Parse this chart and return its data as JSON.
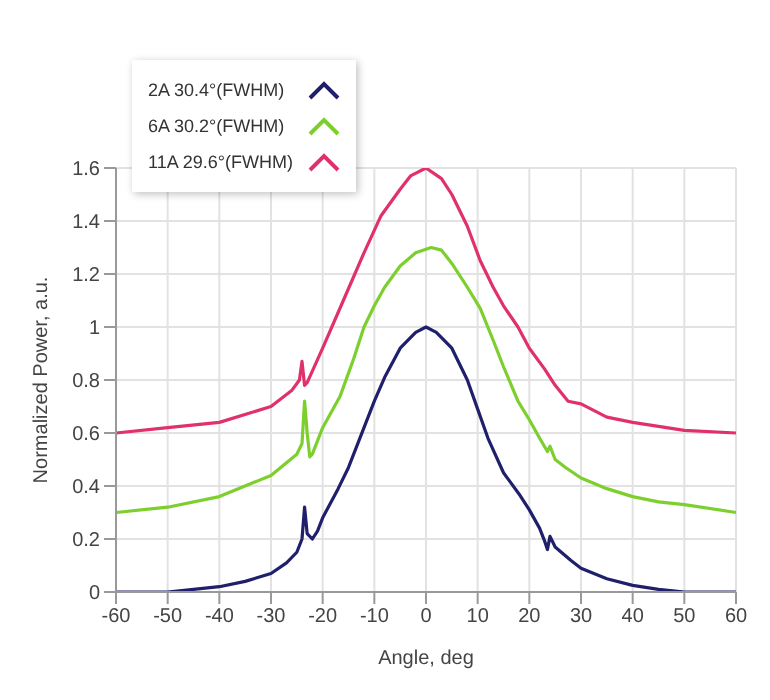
{
  "chart_data": {
    "type": "line",
    "xlabel": "Angle, deg",
    "ylabel": "Normalized Power, a.u.",
    "xlim": [
      -60,
      60
    ],
    "xticks": [
      -60,
      -50,
      -40,
      -30,
      -20,
      -10,
      0,
      10,
      20,
      30,
      40,
      50,
      60
    ],
    "ylim": [
      0,
      1.6
    ],
    "yticks": [
      0,
      0.2,
      0.4,
      0.6,
      0.8,
      1,
      1.2,
      1.4,
      1.6
    ],
    "grid": true,
    "legend": "top left",
    "marker": "none",
    "line_style": "solid",
    "series": [
      {
        "name": "2A 30.4°(FWHM)",
        "color": "#1f1f6b",
        "x": [
          -60,
          -50,
          -45,
          -40,
          -35,
          -30,
          -27,
          -25,
          -24,
          -23.5,
          -23,
          -22,
          -21,
          -20,
          -17,
          -15,
          -12,
          -10,
          -8,
          -5,
          -2,
          0,
          2,
          5,
          8,
          10,
          12,
          15,
          18,
          20,
          22,
          23,
          23.5,
          24,
          25,
          28,
          30,
          35,
          40,
          45,
          50,
          60
        ],
        "values": [
          0,
          0,
          0.01,
          0.02,
          0.04,
          0.07,
          0.11,
          0.15,
          0.2,
          0.32,
          0.22,
          0.2,
          0.23,
          0.28,
          0.39,
          0.47,
          0.62,
          0.72,
          0.81,
          0.92,
          0.98,
          1,
          0.98,
          0.92,
          0.8,
          0.69,
          0.58,
          0.45,
          0.37,
          0.31,
          0.24,
          0.19,
          0.16,
          0.21,
          0.17,
          0.12,
          0.09,
          0.05,
          0.025,
          0.01,
          0,
          0
        ]
      },
      {
        "name": "6A 30.2°(FWHM)",
        "color": "#7dcf2e",
        "x": [
          -60,
          -50,
          -40,
          -30,
          -25,
          -24,
          -23.5,
          -23,
          -22.5,
          -22,
          -20,
          -16.6,
          -14,
          -12,
          -10,
          -8,
          -5,
          -2,
          1,
          3,
          5,
          8,
          10.5,
          13,
          15,
          17.8,
          20,
          22,
          23.5,
          24,
          25,
          27,
          30,
          35,
          40,
          45,
          50,
          60
        ],
        "values": [
          0.3,
          0.32,
          0.36,
          0.44,
          0.52,
          0.56,
          0.72,
          0.6,
          0.51,
          0.52,
          0.62,
          0.74,
          0.88,
          1,
          1.08,
          1.15,
          1.23,
          1.28,
          1.3,
          1.29,
          1.24,
          1.15,
          1.07,
          0.95,
          0.85,
          0.72,
          0.65,
          0.58,
          0.53,
          0.55,
          0.5,
          0.47,
          0.43,
          0.39,
          0.36,
          0.34,
          0.33,
          0.3
        ]
      },
      {
        "name": "11A 29.6°(FWHM)",
        "color": "#e0306e",
        "x": [
          -60,
          -50,
          -40,
          -30,
          -26,
          -24.5,
          -24,
          -23.5,
          -23,
          -20,
          -16,
          -12,
          -8.7,
          -5,
          -3,
          0,
          3,
          5,
          8,
          10.5,
          13,
          15,
          17.8,
          20,
          23,
          25,
          27.5,
          30,
          35,
          40,
          50,
          60
        ],
        "values": [
          0.6,
          0.62,
          0.64,
          0.7,
          0.76,
          0.8,
          0.87,
          0.78,
          0.79,
          0.92,
          1.1,
          1.28,
          1.42,
          1.52,
          1.57,
          1.6,
          1.56,
          1.5,
          1.38,
          1.25,
          1.15,
          1.08,
          1,
          0.92,
          0.84,
          0.78,
          0.72,
          0.71,
          0.66,
          0.64,
          0.61,
          0.6
        ]
      }
    ]
  }
}
